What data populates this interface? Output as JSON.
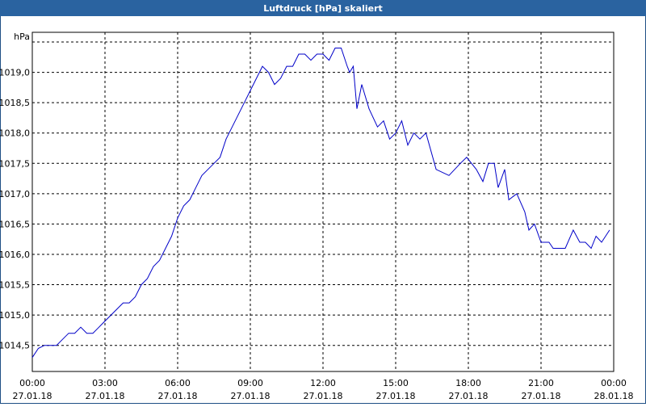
{
  "chart_data": {
    "type": "line",
    "title": "Luftdruck [hPa] skaliert",
    "xlim": [
      0,
      24
    ],
    "ylim": [
      1014.07,
      1019.66
    ],
    "grid": true,
    "xticks": [
      {
        "value": 0,
        "label": "00:00",
        "date": "27.01.18"
      },
      {
        "value": 3,
        "label": "03:00",
        "date": "27.01.18"
      },
      {
        "value": 6,
        "label": "06:00",
        "date": "27.01.18"
      },
      {
        "value": 9,
        "label": "09:00",
        "date": "27.01.18"
      },
      {
        "value": 12,
        "label": "12:00",
        "date": "27.01.18"
      },
      {
        "value": 15,
        "label": "15:00",
        "date": "27.01.18"
      },
      {
        "value": 18,
        "label": "18:00",
        "date": "27.01.18"
      },
      {
        "value": 21,
        "label": "21:00",
        "date": "27.01.18"
      },
      {
        "value": 24,
        "label": "00:00",
        "date": "28.01.18"
      }
    ],
    "yticks": [
      {
        "value": 1014.5,
        "label": "1014,5"
      },
      {
        "value": 1015,
        "label": "1015,0"
      },
      {
        "value": 1015.5,
        "label": "1015,5"
      },
      {
        "value": 1016,
        "label": "1016,0"
      },
      {
        "value": 1016.5,
        "label": "1016,5"
      },
      {
        "value": 1017,
        "label": "1017,0"
      },
      {
        "value": 1017.5,
        "label": "1017,5"
      },
      {
        "value": 1018,
        "label": "1018,0"
      },
      {
        "value": 1018.5,
        "label": "1018,5"
      },
      {
        "value": 1019,
        "label": "1019,0"
      },
      {
        "value": 1019.5,
        "label": "hPa"
      }
    ],
    "series": [
      {
        "color": "#0000c8",
        "x": [
          0,
          0.25,
          0.5,
          1.0,
          1.25,
          1.5,
          1.75,
          2.0,
          2.25,
          2.5,
          2.75,
          3.0,
          3.25,
          3.5,
          3.75,
          4.0,
          4.25,
          4.5,
          4.75,
          5.0,
          5.25,
          5.5,
          5.75,
          6.0,
          6.25,
          6.5,
          6.75,
          7.0,
          7.25,
          7.5,
          7.75,
          8.0,
          8.25,
          8.5,
          8.75,
          9.0,
          9.25,
          9.5,
          9.75,
          10.0,
          10.25,
          10.5,
          10.75,
          11.0,
          11.25,
          11.5,
          11.75,
          12.0,
          12.25,
          12.5,
          12.75,
          13.0,
          13.1,
          13.25,
          13.4,
          13.6,
          13.9,
          14.25,
          14.5,
          14.75,
          15.0,
          15.25,
          15.5,
          15.75,
          16.0,
          16.25,
          16.67,
          17.2,
          17.67,
          17.93,
          18.33,
          18.6,
          18.83,
          19.07,
          19.23,
          19.5,
          19.67,
          20.0,
          20.33,
          20.5,
          20.73,
          21.0,
          21.33,
          21.5,
          22.0,
          22.33,
          22.6,
          22.83,
          23.07,
          23.27,
          23.5,
          23.83
        ],
        "values": [
          1014.3,
          1014.45,
          1014.5,
          1014.5,
          1014.6,
          1014.7,
          1014.7,
          1014.8,
          1014.7,
          1014.7,
          1014.8,
          1014.9,
          1015.0,
          1015.1,
          1015.2,
          1015.2,
          1015.3,
          1015.5,
          1015.6,
          1015.8,
          1015.9,
          1016.1,
          1016.3,
          1016.6,
          1016.8,
          1016.9,
          1017.1,
          1017.3,
          1017.4,
          1017.5,
          1017.6,
          1017.9,
          1018.1,
          1018.3,
          1018.5,
          1018.7,
          1018.9,
          1019.1,
          1019.0,
          1018.8,
          1018.9,
          1019.1,
          1019.1,
          1019.3,
          1019.3,
          1019.2,
          1019.3,
          1019.3,
          1019.2,
          1019.4,
          1019.4,
          1019.1,
          1019.0,
          1019.1,
          1018.4,
          1018.8,
          1018.4,
          1018.1,
          1018.2,
          1017.9,
          1018.0,
          1018.2,
          1017.8,
          1018.0,
          1017.9,
          1018.0,
          1017.4,
          1017.3,
          1017.5,
          1017.6,
          1017.4,
          1017.2,
          1017.5,
          1017.5,
          1017.1,
          1017.4,
          1016.9,
          1017.0,
          1016.7,
          1016.4,
          1016.5,
          1016.2,
          1016.2,
          1016.1,
          1016.1,
          1016.4,
          1016.2,
          1016.2,
          1016.1,
          1016.3,
          1016.2,
          1016.4
        ]
      }
    ]
  }
}
